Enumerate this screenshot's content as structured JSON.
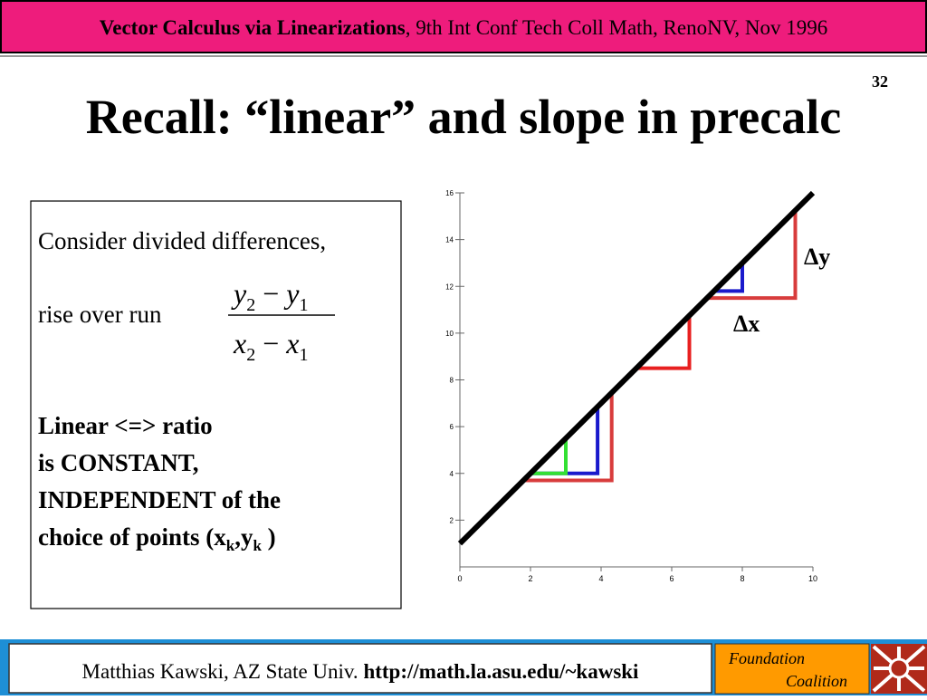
{
  "header": {
    "title_bold": "Vector Calculus via Linearizations",
    "title_rest": ", 9th Int Conf Tech Coll Math, RenoNV, Nov 1996"
  },
  "slide_number": "32",
  "title": "Recall: “linear” and slope in precalc",
  "textbox": {
    "line1": "Consider divided differences,",
    "line2": "rise over run",
    "formula": {
      "num_var1": "y",
      "num_sub1": "2",
      "num_op": "−",
      "num_var2": "y",
      "num_sub2": "1",
      "den_var1": "x",
      "den_sub1": "2",
      "den_op": "−",
      "den_var2": "x",
      "den_sub2": "1"
    },
    "bold_lines": [
      "Linear <=> ratio",
      "is CONSTANT,",
      "INDEPENDENT of the"
    ],
    "last_line": {
      "text1": "choice of points (x",
      "sub1": "k",
      "text2": ",y",
      "sub2": "k",
      "text3": " )"
    }
  },
  "plot": {
    "xlim": [
      0,
      10
    ],
    "ylim": [
      0,
      16
    ],
    "xticks": [
      0,
      2,
      4,
      6,
      8,
      10
    ],
    "yticks": [
      2,
      4,
      6,
      8,
      10,
      12,
      14,
      16
    ],
    "line": {
      "x": [
        0,
        10
      ],
      "y": [
        1,
        16
      ],
      "color": "#000000"
    },
    "steps": [
      {
        "x1": 1.8,
        "x2": 4.3,
        "y1": 3.7,
        "y2": 7.45,
        "color": "#d83c3c"
      },
      {
        "x1": 2,
        "x2": 3.9,
        "y1": 4,
        "y2": 6.85,
        "color": "#1a1acc"
      },
      {
        "x1": 2,
        "x2": 3,
        "y1": 4,
        "y2": 5.5,
        "color": "#33e033"
      },
      {
        "x1": 5,
        "x2": 6.5,
        "y1": 8.5,
        "y2": 10.75,
        "color": "#e82020"
      },
      {
        "x1": 7,
        "x2": 9.5,
        "y1": 11.5,
        "y2": 15.25,
        "color": "#d83c3c"
      },
      {
        "x1": 7.2,
        "x2": 8,
        "y1": 11.8,
        "y2": 13,
        "color": "#1a1acc"
      }
    ],
    "dy_label": "Δy",
    "dx_label": "Δx"
  },
  "footer": {
    "author": "Matthias Kawski, AZ State Univ. ",
    "url": "http://math.la.asu.edu/~kawski",
    "logo_line1": "Foundation",
    "logo_line2": "Coalition"
  }
}
